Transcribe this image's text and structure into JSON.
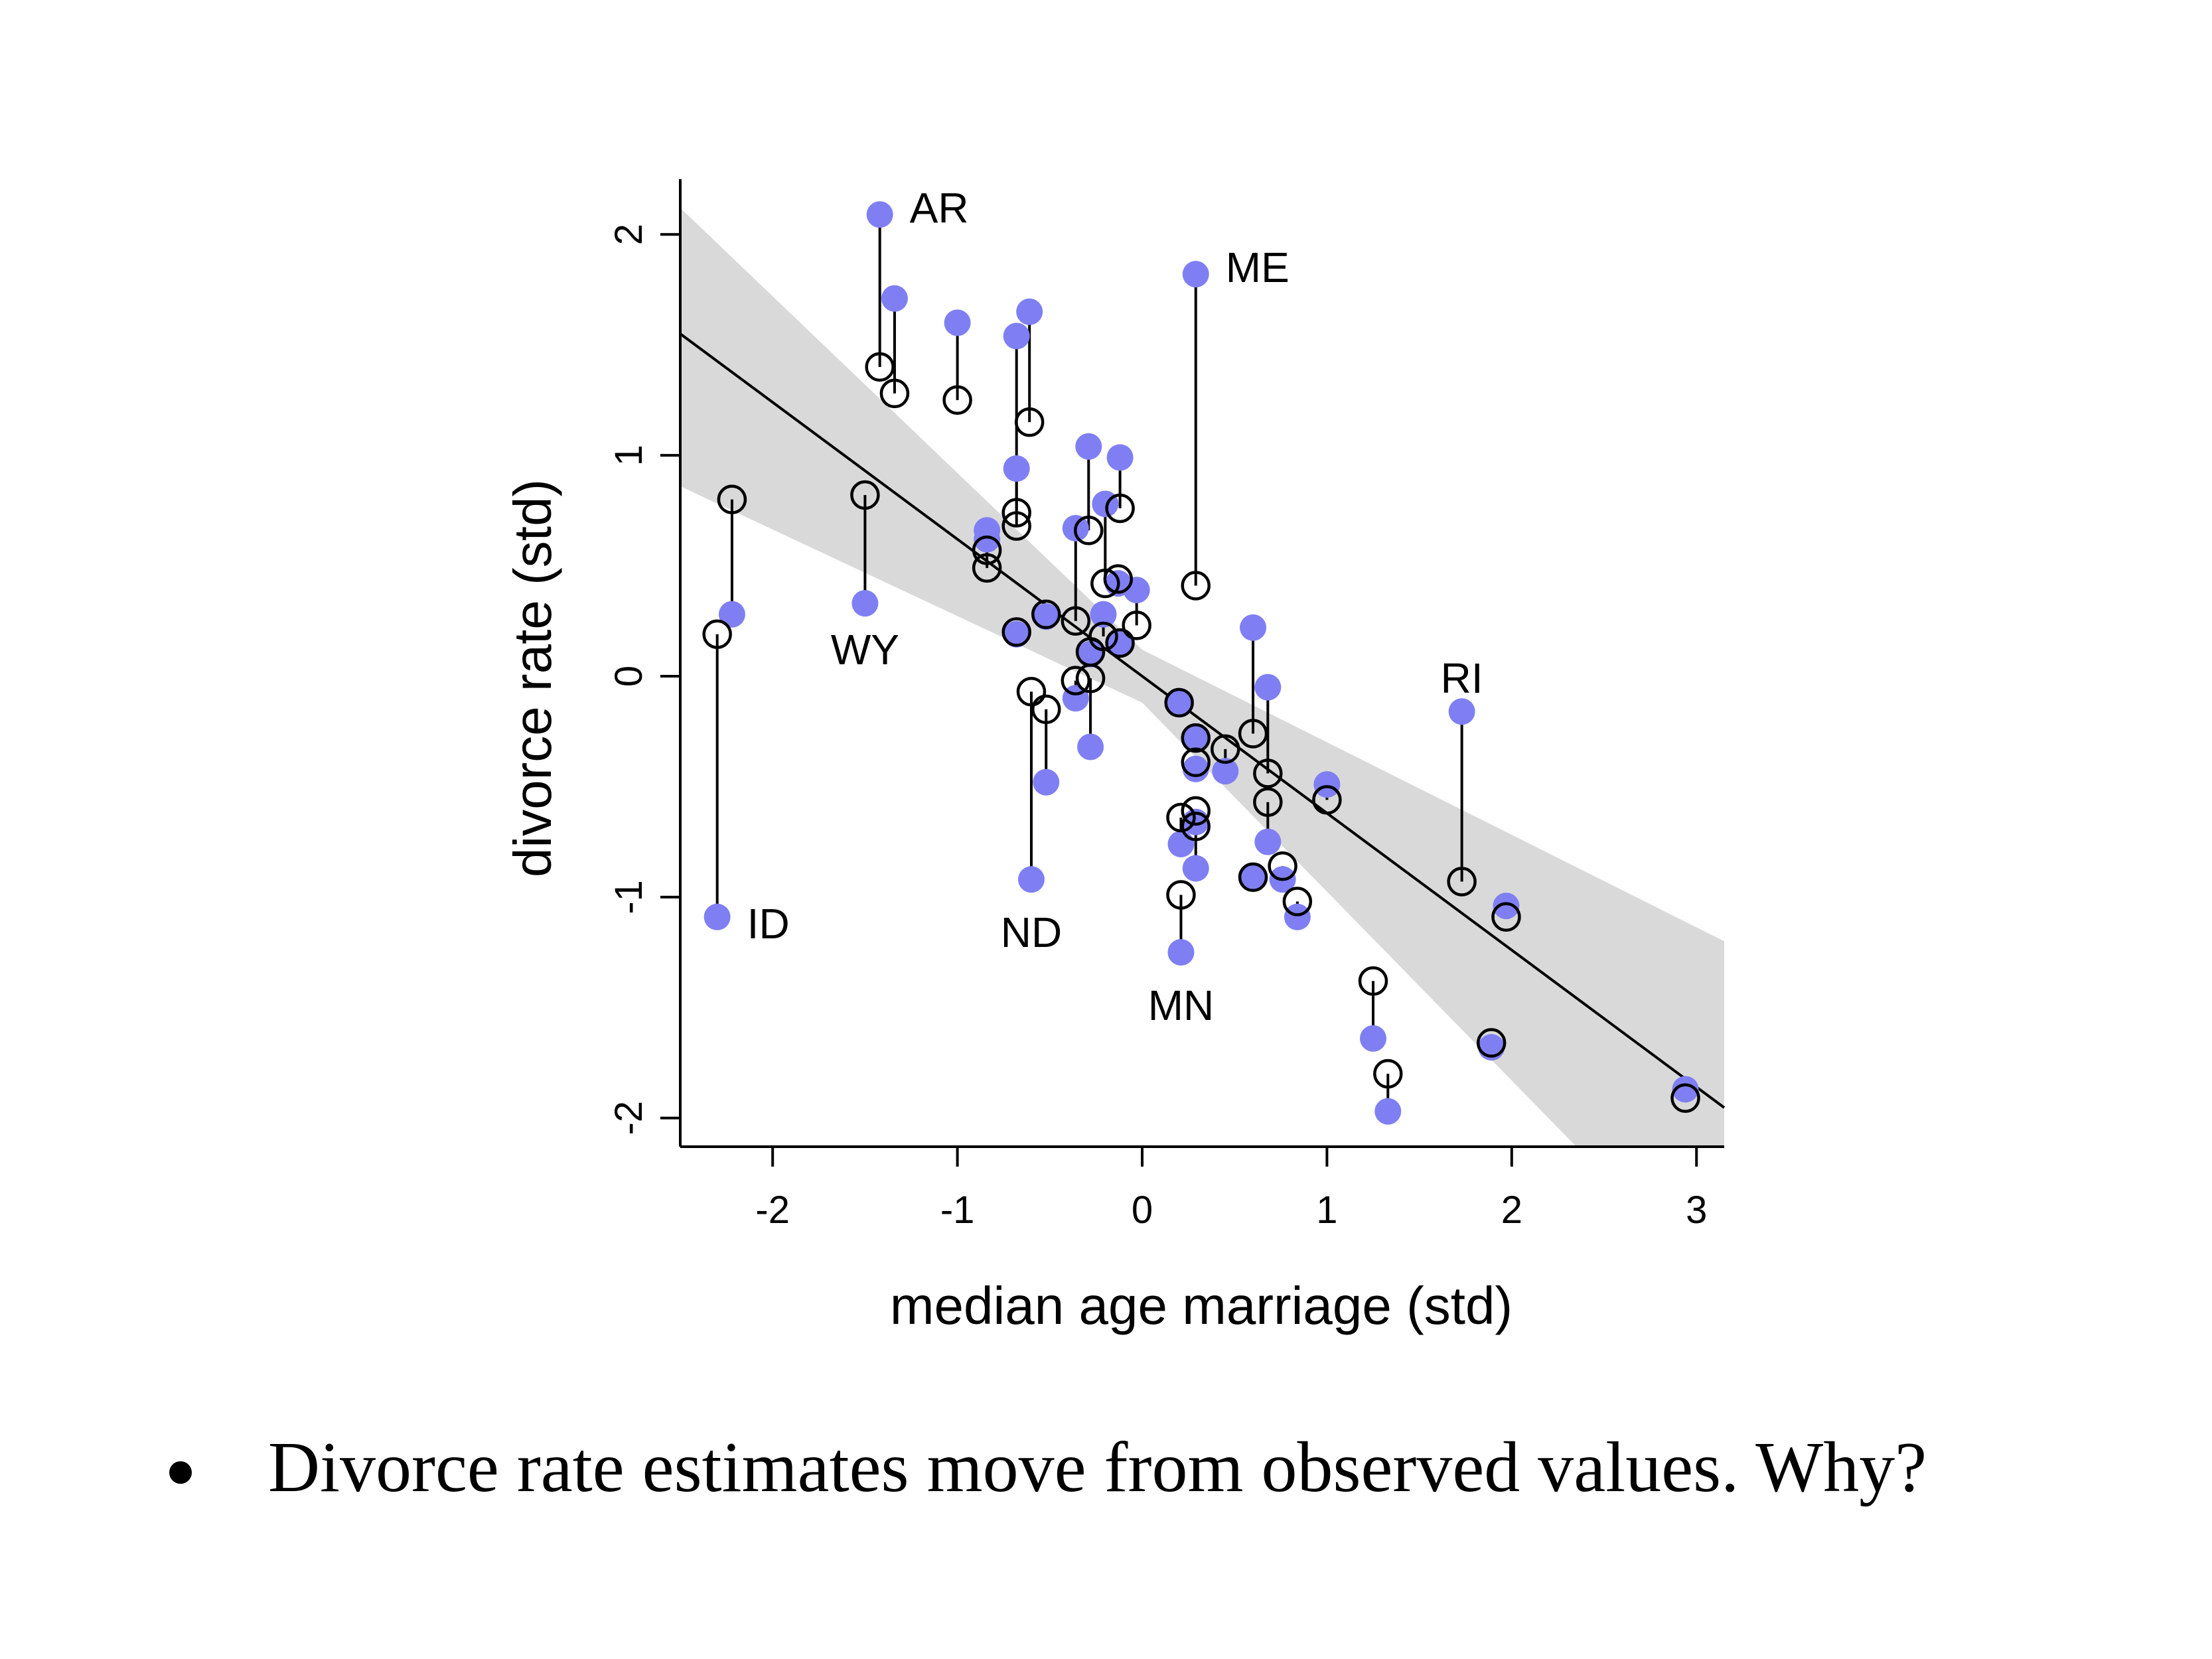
{
  "chart_data": {
    "type": "scatter",
    "xlabel": "median age marriage (std)",
    "ylabel": "divorce rate (std)",
    "xlim": [
      -2.5,
      3.15
    ],
    "ylim": [
      -2.13,
      2.25
    ],
    "xticks": [
      "-2",
      "-1",
      "0",
      "1",
      "2",
      "3"
    ],
    "yticks": [
      "-2",
      "-1",
      "0",
      "1",
      "2"
    ],
    "regression": {
      "intercept": 0.0,
      "slope": -0.62
    },
    "band": {
      "upper": [
        [
          -2.5,
          2.12
        ],
        [
          0,
          0.12
        ],
        [
          3.15,
          -1.2
        ]
      ],
      "lower": [
        [
          -2.5,
          0.86
        ],
        [
          0,
          -0.12
        ],
        [
          2.35,
          -2.13
        ]
      ]
    },
    "colors": {
      "observed": "#7f7ff3",
      "estimate": "#000000",
      "band": "#d9d9d9",
      "line": "#000000"
    },
    "points": [
      {
        "x": -1.42,
        "obs": 2.09,
        "est": 1.4,
        "label": "AR"
      },
      {
        "x": -1.34,
        "obs": 1.71,
        "est": 1.28
      },
      {
        "x": -1.0,
        "obs": 1.6,
        "est": 1.25
      },
      {
        "x": -0.68,
        "obs": 1.54,
        "est": 0.74
      },
      {
        "x": -0.61,
        "obs": 1.65,
        "est": 1.15
      },
      {
        "x": 0.29,
        "obs": 1.82,
        "est": 0.41,
        "label": "ME"
      },
      {
        "x": -0.29,
        "obs": 1.04,
        "est": 0.66
      },
      {
        "x": -0.12,
        "obs": 0.99,
        "est": 0.76
      },
      {
        "x": -0.68,
        "obs": 0.94,
        "est": 0.68
      },
      {
        "x": -2.22,
        "obs": 0.28,
        "est": 0.8
      },
      {
        "x": -1.5,
        "obs": 0.33,
        "est": 0.82,
        "label": "WY"
      },
      {
        "x": -2.3,
        "obs": -1.09,
        "est": 0.19,
        "label": "ID"
      },
      {
        "x": -0.84,
        "obs": 0.66,
        "est": 0.57
      },
      {
        "x": -0.84,
        "obs": 0.62,
        "est": 0.49
      },
      {
        "x": -0.2,
        "obs": 0.78,
        "est": 0.42
      },
      {
        "x": -0.36,
        "obs": 0.67,
        "est": 0.25
      },
      {
        "x": -0.13,
        "obs": 0.42,
        "est": 0.44
      },
      {
        "x": -0.03,
        "obs": 0.39,
        "est": 0.23
      },
      {
        "x": -0.68,
        "obs": 0.19,
        "est": 0.2
      },
      {
        "x": -0.52,
        "obs": 0.27,
        "est": 0.28
      },
      {
        "x": -0.21,
        "obs": 0.28,
        "est": 0.18
      },
      {
        "x": -0.12,
        "obs": 0.15,
        "est": 0.15
      },
      {
        "x": -0.28,
        "obs": 0.1,
        "est": 0.11
      },
      {
        "x": -0.36,
        "obs": -0.1,
        "est": -0.02
      },
      {
        "x": -0.28,
        "obs": -0.32,
        "est": -0.01
      },
      {
        "x": -0.6,
        "obs": -0.92,
        "est": -0.07,
        "label": "ND"
      },
      {
        "x": -0.52,
        "obs": -0.48,
        "est": -0.15
      },
      {
        "x": 0.2,
        "obs": -0.12,
        "est": -0.12
      },
      {
        "x": 0.29,
        "obs": -0.28,
        "est": -0.28
      },
      {
        "x": 0.29,
        "obs": -0.42,
        "est": -0.39
      },
      {
        "x": 0.45,
        "obs": -0.43,
        "est": -0.33
      },
      {
        "x": 0.6,
        "obs": 0.22,
        "est": -0.26
      },
      {
        "x": 0.68,
        "obs": -0.05,
        "est": -0.44
      },
      {
        "x": 0.68,
        "obs": -0.75,
        "est": -0.57
      },
      {
        "x": 1.0,
        "obs": -0.49,
        "est": -0.56
      },
      {
        "x": 0.21,
        "obs": -0.76,
        "est": -0.64
      },
      {
        "x": 0.29,
        "obs": -0.87,
        "est": -0.61
      },
      {
        "x": 0.29,
        "obs": -0.66,
        "est": -0.68
      },
      {
        "x": 0.6,
        "obs": -0.91,
        "est": -0.91
      },
      {
        "x": 0.76,
        "obs": -0.92,
        "est": -0.86
      },
      {
        "x": 0.84,
        "obs": -1.09,
        "est": -1.02
      },
      {
        "x": 0.21,
        "obs": -1.25,
        "est": -0.99,
        "label": "MN"
      },
      {
        "x": 1.25,
        "obs": -1.64,
        "est": -1.38
      },
      {
        "x": 1.33,
        "obs": -1.97,
        "est": -1.8
      },
      {
        "x": 1.73,
        "obs": -0.16,
        "est": -0.93,
        "label": "RI"
      },
      {
        "x": 1.97,
        "obs": -1.04,
        "est": -1.09
      },
      {
        "x": 1.89,
        "obs": -1.68,
        "est": -1.66
      },
      {
        "x": 2.94,
        "obs": -1.87,
        "est": -1.91
      }
    ]
  },
  "caption": {
    "text": "Divorce rate estimates move from observed values. Why?"
  }
}
